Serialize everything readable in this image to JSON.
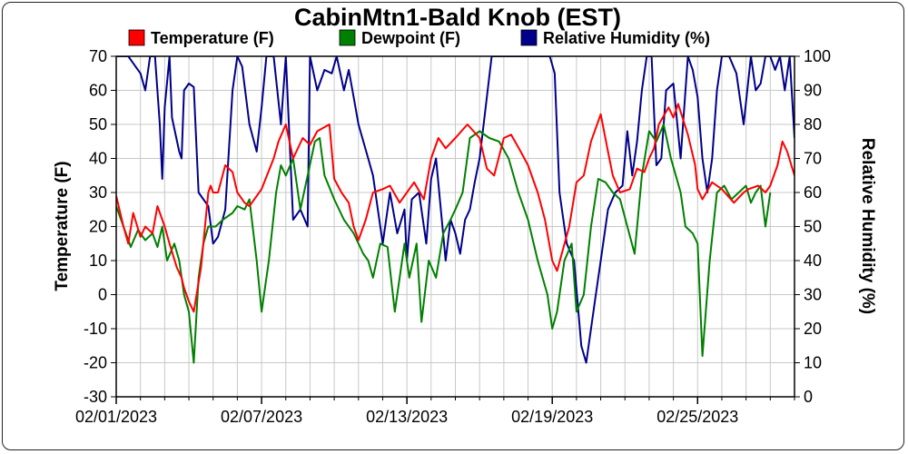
{
  "chart_data": {
    "type": "line",
    "title": "CabinMtn1-Bald Knob (EST)",
    "ylabel": "Temperature (F)",
    "y2label": "Relative Humidity (%)",
    "ylim": [
      -30,
      70
    ],
    "y2lim": [
      0,
      100
    ],
    "yticks": [
      -30,
      -20,
      -10,
      0,
      10,
      20,
      30,
      40,
      50,
      60,
      70
    ],
    "y2ticks": [
      0,
      10,
      20,
      30,
      40,
      50,
      60,
      70,
      80,
      90,
      100
    ],
    "xlim": [
      0,
      28
    ],
    "xticks": [
      {
        "x": 0,
        "label": "02/01/2023"
      },
      {
        "x": 6,
        "label": "02/07/2023"
      },
      {
        "x": 12,
        "label": "02/13/2023"
      },
      {
        "x": 18,
        "label": "02/19/2023"
      },
      {
        "x": 24,
        "label": "02/25/2023"
      }
    ],
    "grid": true,
    "legend_position": "top",
    "series": [
      {
        "name": "Temperature (F)",
        "axis": "left",
        "color": "#ff0000",
        "x": [
          0,
          0.3,
          0.5,
          0.7,
          1.0,
          1.2,
          1.5,
          1.6,
          1.7,
          2.0,
          2.2,
          2.5,
          2.7,
          2.8,
          3.0,
          3.2,
          3.5,
          3.8,
          3.9,
          4.0,
          4.2,
          4.5,
          4.8,
          5.0,
          5.3,
          5.5,
          6.0,
          6.5,
          6.7,
          7.0,
          7.3,
          7.7,
          8.0,
          8.3,
          8.8,
          9.0,
          9.3,
          9.6,
          9.8,
          10.0,
          10.3,
          10.6,
          11.0,
          11.3,
          11.7,
          12.0,
          12.3,
          12.7,
          13.0,
          13.3,
          13.6,
          14.0,
          14.5,
          15.0,
          15.3,
          15.6,
          16.0,
          16.3,
          16.7,
          17.0,
          17.4,
          17.7,
          18.0,
          18.2,
          18.7,
          19.0,
          19.3,
          19.6,
          20.0,
          20.3,
          20.5,
          20.8,
          21.2,
          21.5,
          21.8,
          22.0,
          22.2,
          22.4,
          22.8,
          23.0,
          23.2,
          23.6,
          23.9,
          24.0,
          24.2,
          24.6,
          25.0,
          25.5,
          25.9,
          26.1,
          26.5,
          26.8,
          27.0,
          27.3,
          27.5,
          27.7,
          28.0
        ],
        "y": [
          29,
          20,
          15,
          24,
          17,
          20,
          18,
          22,
          26,
          20,
          15,
          8,
          5,
          2,
          -2,
          -5,
          8,
          30,
          32,
          30,
          30,
          38,
          36,
          30,
          27,
          26,
          31,
          40,
          45,
          50,
          40,
          46,
          44,
          48,
          50,
          34,
          30,
          27,
          20,
          16,
          22,
          30,
          31,
          32,
          27,
          30,
          33,
          28,
          40,
          46,
          43,
          46,
          50,
          46,
          37,
          35,
          46,
          47,
          42,
          38,
          30,
          22,
          10,
          7,
          20,
          33,
          35,
          45,
          53,
          42,
          35,
          30,
          31,
          37,
          36,
          40,
          43,
          50,
          55,
          52,
          56,
          47,
          38,
          31,
          28,
          33,
          31,
          27,
          30,
          31,
          32,
          30,
          32,
          38,
          45,
          42,
          35
        ],
        "thin_tail": true
      },
      {
        "name": "Dewpoint (F)",
        "axis": "left",
        "color": "#008000",
        "x": [
          0,
          0.3,
          0.6,
          0.9,
          1.2,
          1.5,
          1.7,
          1.9,
          2.1,
          2.4,
          2.6,
          2.8,
          3.0,
          3.2,
          3.4,
          3.6,
          3.8,
          4.1,
          4.4,
          4.8,
          5.0,
          5.3,
          5.5,
          5.8,
          6.0,
          6.3,
          6.6,
          6.8,
          7.0,
          7.3,
          7.6,
          7.9,
          8.2,
          8.4,
          8.6,
          9.0,
          9.4,
          9.8,
          10.2,
          10.4,
          10.6,
          10.9,
          11.2,
          11.5,
          11.9,
          12.1,
          12.4,
          12.6,
          12.9,
          13.2,
          13.5,
          13.8,
          14.0,
          14.3,
          14.6,
          15.0,
          15.4,
          15.8,
          16.2,
          16.6,
          17.0,
          17.4,
          17.8,
          18.0,
          18.2,
          18.5,
          18.8,
          19.0,
          19.3,
          19.6,
          19.9,
          20.2,
          20.5,
          20.8,
          21.1,
          21.4,
          21.7,
          22.0,
          22.3,
          22.6,
          22.9,
          23.1,
          23.3,
          23.5,
          23.8,
          24.0,
          24.2,
          24.5,
          24.8,
          25.1,
          25.4,
          25.7,
          26.0,
          26.2,
          26.4,
          26.6,
          26.8,
          27.0
        ],
        "y": [
          26,
          20,
          14,
          19,
          16,
          18,
          14,
          20,
          10,
          15,
          10,
          0,
          -5,
          -20,
          5,
          15,
          20,
          20,
          22,
          24,
          26,
          25,
          28,
          10,
          -5,
          10,
          30,
          38,
          35,
          40,
          25,
          35,
          45,
          46,
          35,
          28,
          22,
          18,
          12,
          10,
          5,
          15,
          14,
          -5,
          15,
          5,
          15,
          -8,
          10,
          5,
          18,
          22,
          25,
          30,
          46,
          48,
          46,
          45,
          40,
          30,
          22,
          10,
          0,
          -10,
          -5,
          10,
          15,
          -5,
          0,
          20,
          34,
          33,
          30,
          28,
          20,
          12,
          35,
          48,
          45,
          50,
          40,
          35,
          30,
          20,
          18,
          15,
          -18,
          10,
          30,
          32,
          28,
          30,
          32,
          27,
          30,
          32,
          20,
          30
        ]
      },
      {
        "name": "Relative Humidity (%)",
        "axis": "right",
        "color": "#00008b",
        "x": [
          0,
          0.3,
          0.5,
          0.8,
          1.0,
          1.2,
          1.4,
          1.6,
          1.8,
          1.9,
          2.0,
          2.2,
          2.3,
          2.6,
          2.7,
          2.8,
          3.0,
          3.2,
          3.4,
          3.6,
          3.8,
          4.0,
          4.2,
          4.5,
          4.8,
          5.0,
          5.2,
          5.5,
          5.8,
          6.0,
          6.2,
          6.5,
          6.8,
          7.0,
          7.3,
          7.6,
          7.9,
          8.0,
          8.3,
          8.6,
          8.9,
          9.1,
          9.4,
          9.6,
          9.8,
          10.0,
          10.4,
          10.6,
          11.0,
          11.3,
          11.6,
          11.9,
          12.0,
          12.2,
          12.5,
          12.8,
          13.0,
          13.2,
          13.4,
          13.6,
          13.8,
          14.0,
          14.2,
          14.4,
          14.6,
          14.8,
          15.0,
          15.5,
          16.0,
          16.5,
          17.0,
          17.4,
          17.7,
          17.9,
          18.1,
          18.3,
          18.6,
          18.9,
          19.2,
          19.4,
          19.6,
          19.8,
          20.0,
          20.3,
          20.6,
          20.9,
          21.1,
          21.3,
          21.5,
          21.7,
          21.9,
          22.1,
          22.3,
          22.5,
          22.7,
          23.0,
          23.3,
          23.6,
          23.8,
          24.0,
          24.2,
          24.4,
          24.6,
          24.8,
          25.0,
          25.3,
          25.6,
          25.9,
          26.2,
          26.4,
          26.6,
          26.8,
          27.0,
          27.2,
          27.4,
          27.6,
          27.8,
          28.0
        ],
        "y": [
          100,
          100,
          100,
          97,
          95,
          90,
          100,
          100,
          80,
          64,
          85,
          100,
          82,
          72,
          70,
          90,
          92,
          91,
          60,
          58,
          56,
          45,
          47,
          55,
          90,
          100,
          97,
          80,
          72,
          85,
          100,
          100,
          80,
          100,
          52,
          55,
          50,
          100,
          90,
          96,
          95,
          100,
          90,
          96,
          88,
          80,
          70,
          65,
          45,
          60,
          48,
          55,
          40,
          58,
          60,
          45,
          64,
          70,
          55,
          40,
          52,
          48,
          42,
          52,
          55,
          63,
          70,
          100,
          100,
          100,
          100,
          100,
          100,
          100,
          95,
          60,
          45,
          40,
          15,
          10,
          20,
          30,
          40,
          55,
          60,
          62,
          78,
          65,
          75,
          90,
          100,
          100,
          68,
          70,
          90,
          92,
          70,
          100,
          96,
          88,
          70,
          60,
          70,
          90,
          100,
          100,
          95,
          80,
          100,
          90,
          92,
          100,
          100,
          96,
          100,
          90,
          100,
          76
        ]
      }
    ]
  }
}
